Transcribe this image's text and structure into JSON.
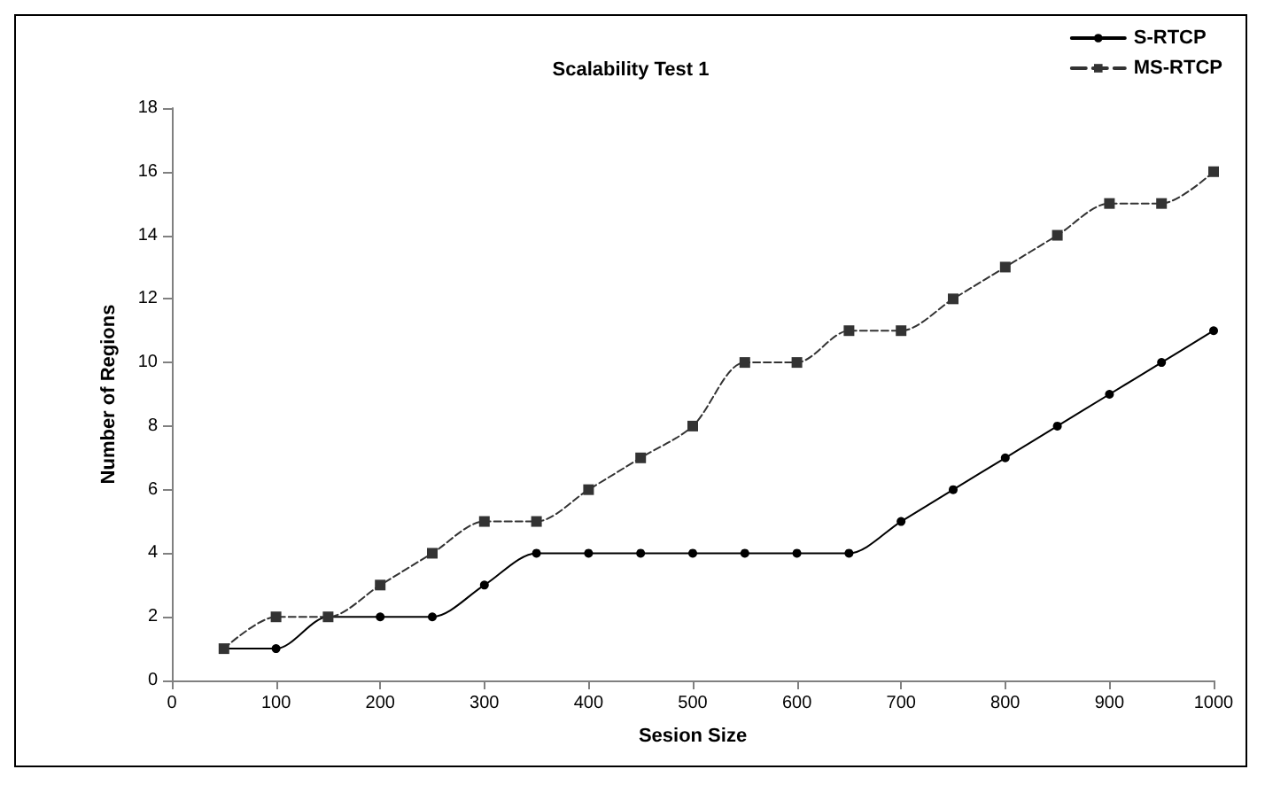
{
  "chart_data": {
    "type": "line",
    "title": "Scalability Test 1",
    "xlabel": "Sesion Size",
    "ylabel": "Number of Regions",
    "x": [
      50,
      100,
      150,
      200,
      250,
      300,
      350,
      400,
      450,
      500,
      550,
      600,
      650,
      700,
      750,
      800,
      850,
      900,
      950,
      1000
    ],
    "series": [
      {
        "name": "S-RTCP",
        "color": "#000000",
        "line_style": "solid",
        "marker": "circle",
        "values": [
          1,
          1,
          2,
          2,
          2,
          3,
          4,
          4,
          4,
          4,
          4,
          4,
          4,
          5,
          6,
          7,
          8,
          9,
          10,
          11
        ]
      },
      {
        "name": "MS-RTCP",
        "color": "#333333",
        "line_style": "dashed",
        "marker": "square",
        "values": [
          1,
          2,
          2,
          3,
          4,
          5,
          5,
          6,
          7,
          8,
          10,
          10,
          11,
          11,
          12,
          13,
          14,
          15,
          15,
          16
        ]
      }
    ],
    "xlim": [
      0,
      1000
    ],
    "xticks": [
      0,
      100,
      200,
      300,
      400,
      500,
      600,
      700,
      800,
      900,
      1000
    ],
    "ylim": [
      0,
      18
    ],
    "yticks": [
      0,
      2,
      4,
      6,
      8,
      10,
      12,
      14,
      16,
      18
    ],
    "grid": false,
    "legend": "top right"
  }
}
